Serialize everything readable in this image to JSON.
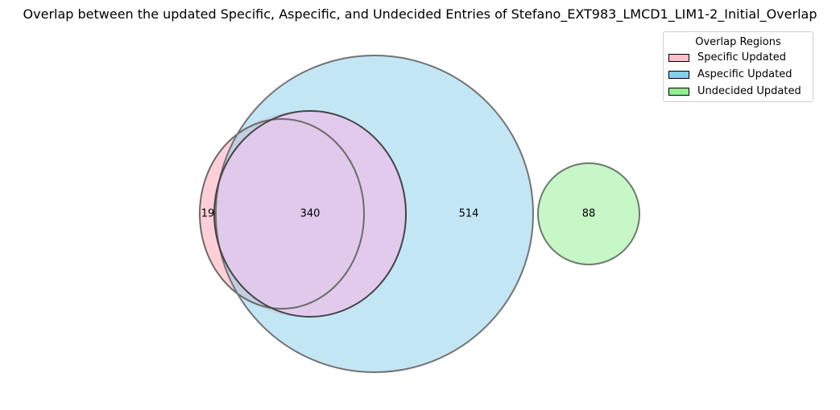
{
  "chart_data": {
    "type": "venn",
    "title": "Overlap between the updated Specific, Aspecific, and Undecided Entries of Stefano_EXT983_LMCD1_LIM1-2_Initial_Overlap",
    "sets": [
      {
        "name": "Specific Updated",
        "color": "#ffc0cb"
      },
      {
        "name": "Aspecific Updated",
        "color": "#87ceeb"
      },
      {
        "name": "Undecided Updated",
        "color": "#90ee90"
      }
    ],
    "regions": [
      {
        "id": "specific-only",
        "sets": [
          "Specific Updated"
        ],
        "value": 19
      },
      {
        "id": "specific-aspecific",
        "sets": [
          "Specific Updated",
          "Aspecific Updated"
        ],
        "value": 340
      },
      {
        "id": "aspecific-only",
        "sets": [
          "Aspecific Updated"
        ],
        "value": 514
      },
      {
        "id": "undecided-only",
        "sets": [
          "Undecided Updated"
        ],
        "value": 88
      }
    ],
    "legend": {
      "title": "Overlap Regions",
      "placement": "top-right"
    }
  }
}
